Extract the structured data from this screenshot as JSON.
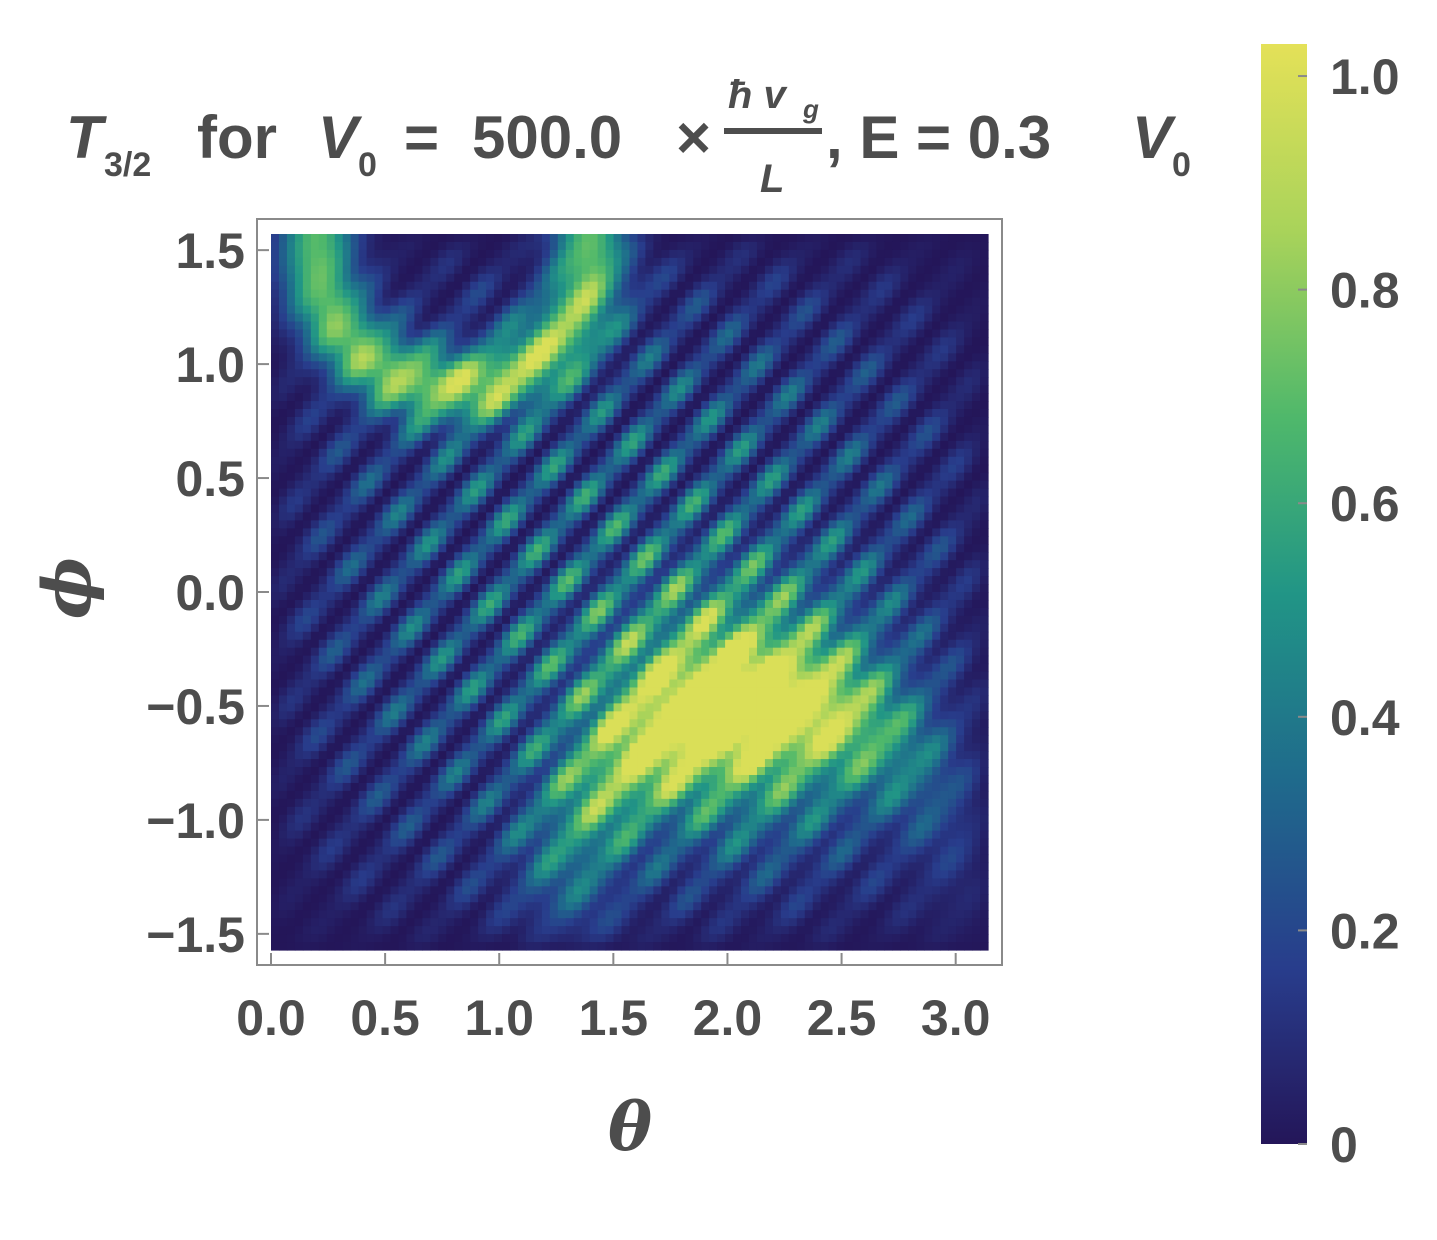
{
  "chart_data": {
    "type": "heatmap",
    "title": {
      "symbol": "T",
      "symbol_subscript": "3/2",
      "for_word": "for",
      "v0_symbol": "V",
      "v0_subscript": "0",
      "equals": "=",
      "value": "500.0",
      "times": "×",
      "fraction_numerator": "ħ v",
      "fraction_numerator_subscript": "g",
      "fraction_denominator": "L",
      "energy_part": ", E = 0.3",
      "energy_v": "V",
      "energy_v_subscript": "0"
    },
    "xlabel": "θ",
    "ylabel": "ϕ",
    "xlim": [
      0,
      3.1416
    ],
    "ylim": [
      -1.5708,
      1.5708
    ],
    "x_ticks": [
      "0.0",
      "0.5",
      "1.0",
      "1.5",
      "2.0",
      "2.5",
      "3.0"
    ],
    "x_tick_values": [
      0,
      0.5,
      1.0,
      1.5,
      2.0,
      2.5,
      3.0
    ],
    "y_ticks": [
      "1.5",
      "1.0",
      "0.5",
      "0.0",
      "−0.5",
      "−1.0",
      "−1.5"
    ],
    "y_tick_values": [
      1.5,
      1.0,
      0.5,
      0.0,
      -0.5,
      -1.0,
      -1.5
    ],
    "colorbar": {
      "range": [
        0,
        1.03
      ],
      "ticks": [
        "1.0",
        "0.8",
        "0.6",
        "0.4",
        "0.2",
        "0"
      ],
      "tick_values": [
        1.0,
        0.8,
        0.6,
        0.4,
        0.2,
        0.0
      ],
      "colormap": [
        "#241659",
        "#283d8c",
        "#1f6a8c",
        "#219586",
        "#4fb86b",
        "#a9d35a",
        "#e4e158"
      ]
    },
    "description_values": {
      "grid": "off",
      "pattern": "interference fringes of transmission probability over angles theta and phi"
    }
  }
}
